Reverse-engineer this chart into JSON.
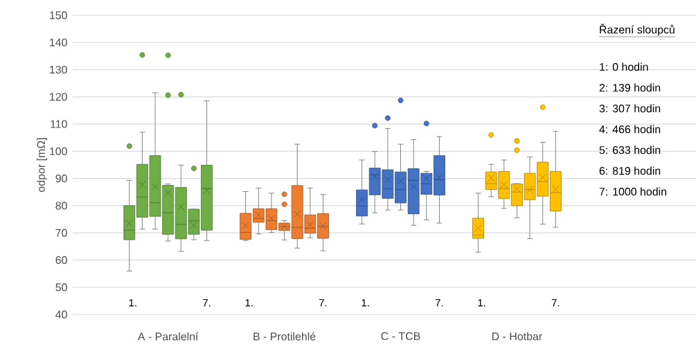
{
  "chart_data": {
    "type": "box",
    "ylabel": "odpor [mΩ]",
    "categories": [
      "A - Paralelní",
      "B - Protilehlé",
      "C - TCB",
      "D - Hotbar"
    ],
    "ylim": [
      40,
      150
    ],
    "yticks": [
      40,
      50,
      60,
      70,
      80,
      90,
      100,
      110,
      120,
      130,
      140,
      150
    ],
    "grid": "y",
    "series": [
      {
        "colors": [
          "#70ad47",
          "#ed7d31",
          "#4472c4",
          "#ffc000"
        ],
        "boxes": [
          {
            "low": 56.0,
            "q1": 67.5,
            "median": 71.0,
            "q3": 80.0,
            "high": 89.3,
            "mean": 73.5,
            "outliers": [
              101.9
            ]
          },
          {
            "low": 67.2,
            "q1": 67.6,
            "median": 70.2,
            "q3": 77.2,
            "high": 85.2,
            "mean": 72.7
          },
          {
            "low": 73.3,
            "q1": 76.2,
            "median": 79.9,
            "q3": 85.8,
            "high": 96.8,
            "mean": 82.2
          },
          {
            "low": 62.9,
            "q1": 68.0,
            "median": 69.2,
            "q3": 75.4,
            "high": 84.6,
            "mean": 71.7
          }
        ]
      },
      {
        "colors": [
          "#70ad47",
          "#ed7d31",
          "#4472c4",
          "#ffc000"
        ],
        "boxes": [
          {
            "low": 71.4,
            "q1": 75.8,
            "median": 83.2,
            "q3": 95.2,
            "high": 107.0,
            "mean": 87.7,
            "outliers": [
              135.4
            ]
          },
          {
            "low": 69.6,
            "q1": 73.9,
            "median": 75.3,
            "q3": 78.9,
            "high": 86.5,
            "mean": 76.6
          },
          {
            "low": 77.4,
            "q1": 84.0,
            "median": 91.3,
            "q3": 93.8,
            "high": 99.9,
            "mean": 90.8,
            "outliers": [
              109.4
            ]
          },
          {
            "low": 83.3,
            "q1": 85.9,
            "median": 88.1,
            "q3": 92.4,
            "high": 95.2,
            "mean": 90.2,
            "outliers": [
              106.0
            ]
          }
        ]
      },
      {
        "colors": [
          "#70ad47",
          "#ed7d31",
          "#4472c4",
          "#ffc000"
        ],
        "boxes": [
          {
            "low": 71.4,
            "q1": 76.1,
            "median": 81.1,
            "q3": 98.4,
            "high": 121.5,
            "mean": 87.0
          },
          {
            "low": 70.2,
            "q1": 71.2,
            "median": 74.5,
            "q3": 78.9,
            "high": 84.6,
            "mean": 75.4
          },
          {
            "low": 78.4,
            "q1": 82.7,
            "median": 86.3,
            "q3": 93.2,
            "high": 108.4,
            "mean": 89.6,
            "outliers": [
              112.2
            ]
          },
          {
            "low": 79.0,
            "q1": 82.6,
            "median": 86.3,
            "q3": 92.6,
            "high": 96.8,
            "mean": 87.7
          }
        ]
      },
      {
        "colors": [
          "#70ad47",
          "#ed7d31",
          "#4472c4",
          "#ffc000"
        ],
        "boxes": [
          {
            "low": 67.0,
            "q1": 69.5,
            "median": 77.4,
            "q3": 87.5,
            "high": 88.0,
            "mean": 84.7,
            "outliers": [
              135.3,
              120.6
            ]
          },
          {
            "low": 67.4,
            "q1": 70.9,
            "median": 72.3,
            "q3": 73.6,
            "high": 74.5,
            "mean": 72.5,
            "outliers": [
              84.2,
              80.5
            ]
          },
          {
            "low": 78.4,
            "q1": 81.0,
            "median": 85.9,
            "q3": 92.4,
            "high": 102.6,
            "mean": 89.1,
            "outliers": [
              118.7
            ]
          },
          {
            "low": 75.6,
            "q1": 80.0,
            "median": 85.0,
            "q3": 88.0,
            "high": 88.1,
            "mean": 86.3,
            "outliers": [
              103.8,
              100.4
            ]
          }
        ]
      },
      {
        "colors": [
          "#70ad47",
          "#ed7d31",
          "#4472c4",
          "#ffc000"
        ],
        "boxes": [
          {
            "low": 63.2,
            "q1": 67.8,
            "median": 73.1,
            "q3": 86.7,
            "high": 94.9,
            "mean": 79.6,
            "outliers": [
              120.8
            ]
          },
          {
            "low": 64.4,
            "q1": 67.9,
            "median": 72.0,
            "q3": 87.4,
            "high": 102.6,
            "mean": 76.9
          },
          {
            "low": 72.8,
            "q1": 77.0,
            "median": 89.3,
            "q3": 93.6,
            "high": 104.3,
            "mean": 87.0
          },
          {
            "low": 67.9,
            "q1": 82.2,
            "median": 85.9,
            "q3": 91.9,
            "high": 97.9,
            "mean": 85.8
          }
        ]
      },
      {
        "colors": [
          "#70ad47",
          "#ed7d31",
          "#4472c4",
          "#ffc000"
        ],
        "boxes": [
          {
            "low": 67.5,
            "q1": 69.5,
            "median": 74.4,
            "q3": 78.7,
            "high": 78.7,
            "mean": 72.7,
            "outliers": [
              93.7
            ]
          },
          {
            "low": 68.2,
            "q1": 69.9,
            "median": 71.7,
            "q3": 76.6,
            "high": 86.5,
            "mean": 73.0
          },
          {
            "low": 74.8,
            "q1": 84.2,
            "median": 88.0,
            "q3": 91.9,
            "high": 92.6,
            "mean": 90.0,
            "outliers": [
              110.2
            ]
          },
          {
            "low": 73.2,
            "q1": 83.5,
            "median": 88.8,
            "q3": 96.0,
            "high": 103.3,
            "mean": 90.4,
            "outliers": [
              116.2
            ]
          }
        ]
      },
      {
        "colors": [
          "#70ad47",
          "#ed7d31",
          "#4472c4",
          "#ffc000"
        ],
        "boxes": [
          {
            "low": 67.2,
            "q1": 71.0,
            "median": 86.3,
            "q3": 94.9,
            "high": 118.5,
            "mean": 85.6
          },
          {
            "low": 63.4,
            "q1": 68.0,
            "median": 72.4,
            "q3": 77.1,
            "high": 84.1,
            "mean": 72.5
          },
          {
            "low": 73.6,
            "q1": 83.9,
            "median": 89.6,
            "q3": 98.4,
            "high": 105.4,
            "mean": 90.4
          },
          {
            "low": 72.1,
            "q1": 78.0,
            "median": 84.8,
            "q3": 92.6,
            "high": 107.3,
            "mean": 86.1
          }
        ]
      }
    ],
    "annotations": [
      "Řazení sloupců",
      "1: 0 hodin",
      "2: 139 hodin",
      "3: 307 hodin",
      "4: 466 hodin",
      "5: 633 hodin",
      "6: 819 hodin",
      "7: 1000 hodin",
      "1.",
      "7.",
      "1.",
      "7.",
      "1.",
      "7.",
      "1.",
      "7."
    ]
  }
}
